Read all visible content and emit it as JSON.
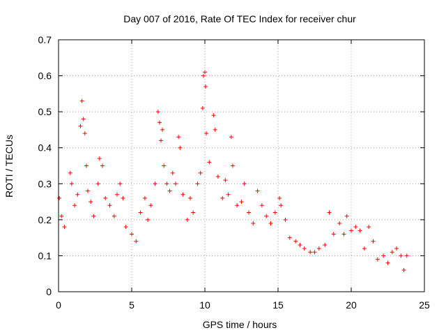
{
  "chart_data": {
    "type": "scatter",
    "title": "Day 007 of 2016, Rate Of TEC Index for receiver chur",
    "xlabel": "GPS time / hours",
    "ylabel": "ROTI / TECUs",
    "xlim": [
      0,
      25
    ],
    "ylim": [
      0,
      0.7
    ],
    "xticks": [
      0,
      5,
      10,
      15,
      20,
      25
    ],
    "yticks": [
      0,
      0.1,
      0.2,
      0.3,
      0.4,
      0.5,
      0.6,
      0.7
    ],
    "grid": true,
    "legend": "none",
    "marker": "plus",
    "color": "#ff0000",
    "series": [
      {
        "name": "",
        "points": [
          [
            0.05,
            0.26
          ],
          [
            0.2,
            0.21
          ],
          [
            0.4,
            0.18
          ],
          [
            0.8,
            0.33
          ],
          [
            0.9,
            0.3
          ],
          [
            1.1,
            0.24
          ],
          [
            1.3,
            0.27
          ],
          [
            1.5,
            0.46
          ],
          [
            1.6,
            0.53
          ],
          [
            1.7,
            0.48
          ],
          [
            1.8,
            0.44
          ],
          [
            1.9,
            0.35
          ],
          [
            2.0,
            0.28
          ],
          [
            2.2,
            0.25
          ],
          [
            2.4,
            0.21
          ],
          [
            2.7,
            0.3
          ],
          [
            2.8,
            0.37
          ],
          [
            3.0,
            0.35
          ],
          [
            3.2,
            0.26
          ],
          [
            3.5,
            0.24
          ],
          [
            3.8,
            0.21
          ],
          [
            4.0,
            0.27
          ],
          [
            4.2,
            0.3
          ],
          [
            4.4,
            0.26
          ],
          [
            4.6,
            0.18
          ],
          [
            5.0,
            0.16
          ],
          [
            5.3,
            0.14
          ],
          [
            5.6,
            0.22
          ],
          [
            5.9,
            0.26
          ],
          [
            6.1,
            0.2
          ],
          [
            6.3,
            0.24
          ],
          [
            6.6,
            0.3
          ],
          [
            6.8,
            0.5
          ],
          [
            6.9,
            0.47
          ],
          [
            7.0,
            0.42
          ],
          [
            7.1,
            0.45
          ],
          [
            7.2,
            0.35
          ],
          [
            7.4,
            0.3
          ],
          [
            7.6,
            0.28
          ],
          [
            7.8,
            0.33
          ],
          [
            8.0,
            0.3
          ],
          [
            8.2,
            0.43
          ],
          [
            8.3,
            0.4
          ],
          [
            8.5,
            0.27
          ],
          [
            8.8,
            0.2
          ],
          [
            9.0,
            0.26
          ],
          [
            9.2,
            0.22
          ],
          [
            9.5,
            0.3
          ],
          [
            9.7,
            0.33
          ],
          [
            9.85,
            0.51
          ],
          [
            9.9,
            0.6
          ],
          [
            10.0,
            0.61
          ],
          [
            10.05,
            0.57
          ],
          [
            10.1,
            0.44
          ],
          [
            10.3,
            0.36
          ],
          [
            10.6,
            0.49
          ],
          [
            10.7,
            0.45
          ],
          [
            10.9,
            0.32
          ],
          [
            11.2,
            0.26
          ],
          [
            11.4,
            0.31
          ],
          [
            11.6,
            0.27
          ],
          [
            11.8,
            0.43
          ],
          [
            11.9,
            0.35
          ],
          [
            12.2,
            0.24
          ],
          [
            12.5,
            0.25
          ],
          [
            12.7,
            0.3
          ],
          [
            13.0,
            0.22
          ],
          [
            13.3,
            0.19
          ],
          [
            13.6,
            0.28
          ],
          [
            13.9,
            0.24
          ],
          [
            14.2,
            0.21
          ],
          [
            14.5,
            0.19
          ],
          [
            14.8,
            0.22
          ],
          [
            15.1,
            0.26
          ],
          [
            15.2,
            0.24
          ],
          [
            15.5,
            0.2
          ],
          [
            15.8,
            0.15
          ],
          [
            16.2,
            0.14
          ],
          [
            16.5,
            0.13
          ],
          [
            16.8,
            0.12
          ],
          [
            17.2,
            0.11
          ],
          [
            17.5,
            0.11
          ],
          [
            17.8,
            0.12
          ],
          [
            18.2,
            0.13
          ],
          [
            18.5,
            0.22
          ],
          [
            18.8,
            0.16
          ],
          [
            19.2,
            0.19
          ],
          [
            19.5,
            0.16
          ],
          [
            19.7,
            0.21
          ],
          [
            20.0,
            0.17
          ],
          [
            20.3,
            0.18
          ],
          [
            20.6,
            0.17
          ],
          [
            20.9,
            0.12
          ],
          [
            21.2,
            0.18
          ],
          [
            21.5,
            0.14
          ],
          [
            21.8,
            0.09
          ],
          [
            22.2,
            0.1
          ],
          [
            22.5,
            0.08
          ],
          [
            22.8,
            0.11
          ],
          [
            23.1,
            0.12
          ],
          [
            23.4,
            0.1
          ],
          [
            23.6,
            0.06
          ],
          [
            23.8,
            0.1
          ]
        ]
      }
    ]
  }
}
